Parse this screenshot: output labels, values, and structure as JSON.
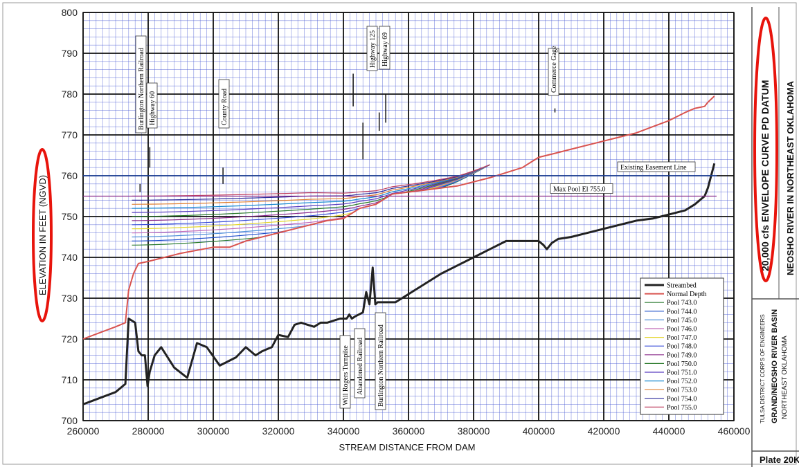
{
  "chart_data": {
    "type": "line",
    "title": "20,000 cfs ENVELOPE CURVE PD DATUM",
    "xlabel": "STREAM DISTANCE FROM DAM",
    "ylabel": "ELEVATION IN FEET (NGVD)",
    "xlim": [
      260000,
      460000
    ],
    "ylim": [
      700,
      800
    ],
    "xticks": [
      "260000",
      "280000",
      "300000",
      "320000",
      "340000",
      "360000",
      "380000",
      "400000",
      "420000",
      "440000",
      "460000"
    ],
    "yticks": [
      "700",
      "710",
      "720",
      "730",
      "740",
      "750",
      "760",
      "770",
      "780",
      "790",
      "800"
    ],
    "grid": true,
    "legend_position": "bottom-right",
    "series": [
      {
        "name": "Streambed",
        "color": "#222222",
        "width": 3,
        "x": [
          260000,
          270000,
          273000,
          274000,
          276000,
          277000,
          278000,
          279000,
          279800,
          280500,
          282000,
          284000,
          288000,
          292000,
          295000,
          298000,
          302000,
          307000,
          310000,
          313000,
          315000,
          318000,
          320000,
          323000,
          325000,
          327000,
          329000,
          331000,
          333000,
          335000,
          337000,
          339000,
          341000,
          341800,
          342600,
          343500,
          346000,
          347000,
          348000,
          349000,
          349800,
          350500,
          352000,
          356000,
          360000,
          365000,
          370000,
          375000,
          380000,
          385000,
          390000,
          395000,
          400000,
          401500,
          402500,
          404000,
          405000,
          406000,
          410000,
          415000,
          420000,
          425000,
          430000,
          435000,
          440000,
          445000,
          448000,
          451000,
          452000,
          454000
        ],
        "y": [
          704,
          707,
          709,
          725,
          724,
          717,
          716,
          716,
          708.5,
          712,
          716,
          718,
          713,
          710.5,
          719,
          718,
          713.5,
          715.5,
          718,
          716,
          717,
          718,
          721,
          720.5,
          723.5,
          724,
          723.5,
          723,
          724,
          724,
          724.5,
          725,
          725,
          726,
          725,
          725.5,
          726.5,
          731.5,
          728.5,
          737.5,
          728.5,
          729,
          729,
          729,
          731,
          733.5,
          736,
          738,
          740,
          742,
          744,
          744,
          744,
          743,
          742,
          743.5,
          744,
          744.5,
          745,
          746,
          747,
          748,
          749,
          749.5,
          750.5,
          751.5,
          753,
          755,
          757,
          763
        ]
      },
      {
        "name": "Normal Depth",
        "color": "#d9534f",
        "width": 2,
        "x": [
          260000,
          270000,
          273000,
          274000,
          275500,
          277000,
          280000,
          290000,
          300000,
          305000,
          310000,
          320000,
          330000,
          335000,
          340000,
          345000,
          350000,
          355000,
          365000,
          375000,
          385000,
          395000,
          400000,
          405000,
          410000,
          420000,
          430000,
          435000,
          440000,
          445000,
          448000,
          451000,
          452000,
          454000
        ],
        "y": [
          720,
          723,
          724,
          732,
          736,
          738.5,
          739,
          741,
          742.5,
          742.5,
          744,
          746,
          748,
          749,
          749.5,
          752,
          753,
          755.5,
          756.5,
          757.5,
          759.5,
          762,
          764.5,
          765.5,
          766.5,
          768.5,
          770.5,
          772,
          773.5,
          775.5,
          776.5,
          777,
          778,
          779.5
        ]
      },
      {
        "name": "Pool 743.0",
        "color": "#2e7d32",
        "width": 1,
        "pool": 743.0
      },
      {
        "name": "Pool 744.0",
        "color": "#1e4fc9",
        "width": 1,
        "pool": 744.0
      },
      {
        "name": "Pool 745.0",
        "color": "#4f8fd8",
        "width": 1,
        "pool": 745.0
      },
      {
        "name": "Pool 746.0",
        "color": "#c06ab8",
        "width": 1,
        "pool": 746.0
      },
      {
        "name": "Pool 747.0",
        "color": "#e3d52a",
        "width": 1,
        "pool": 747.0
      },
      {
        "name": "Pool 748.0",
        "color": "#3b4fd8",
        "width": 1,
        "pool": 748.0
      },
      {
        "name": "Pool 749.0",
        "color": "#8a2a8a",
        "width": 1,
        "pool": 749.0
      },
      {
        "name": "Pool 750.0",
        "color": "#2a7a2a",
        "width": 1,
        "pool": 750.0
      },
      {
        "name": "Pool 751.0",
        "color": "#5a3fc0",
        "width": 1,
        "pool": 751.0
      },
      {
        "name": "Pool 752.0",
        "color": "#1a8ad0",
        "width": 1,
        "pool": 752.0
      },
      {
        "name": "Pool 753.0",
        "color": "#e08030",
        "width": 1,
        "pool": 753.0
      },
      {
        "name": "Pool 754.0",
        "color": "#2a2a9a",
        "width": 1,
        "pool": 754.0
      },
      {
        "name": "Pool 755.0",
        "color": "#c04060",
        "width": 1,
        "pool": 755.0
      }
    ],
    "reference_lines": [
      {
        "label": "Existing Easement Line",
        "y": 760,
        "color": "#1e4fc9"
      },
      {
        "label": "Max Pool El 755.0",
        "y": 755,
        "color": "#8a2a8a"
      }
    ],
    "annotations": [
      {
        "label": "Burlington Northern Railroad",
        "x": 277500,
        "y0": 756,
        "y1": 758
      },
      {
        "label": "Highway 60",
        "x": 280500,
        "y0": 762,
        "y1": 767
      },
      {
        "label": "County Road",
        "x": 303000,
        "y0": 758,
        "y1": 762
      },
      {
        "label": "Highway 125",
        "x": 346000,
        "y0": 764,
        "y1": 773
      },
      {
        "label": "Highway 69",
        "x": 353000,
        "y0": 773,
        "y1": 780
      },
      {
        "label": "Commerce Gage",
        "x": 405000,
        "y0": 775.5,
        "y1": 776.5
      },
      {
        "label": "Will Rogers Turnpike",
        "x": 340500,
        "y0": null,
        "y1": null
      },
      {
        "label": "Abandoned Railroad",
        "x": 345000,
        "y0": null,
        "y1": null
      },
      {
        "label": "Burlington Northern Railroad",
        "x": 352000,
        "y0": null,
        "y1": null
      }
    ]
  },
  "side_panel": {
    "title": "20,000 cfs ENVELOPE CURVE PD DATUM",
    "subtitle": "NEOSHO RIVER IN NORTHEAST OKLAHOMA",
    "agency": "TULSA DISTRICT CORPS OF ENGINEERS",
    "basin": "GRAND/NEOSHO RIVER BASIN",
    "region": "NORTHEAST OKLAHOMA",
    "plate": "Plate 20K"
  },
  "highlight_color": "#e8140c"
}
